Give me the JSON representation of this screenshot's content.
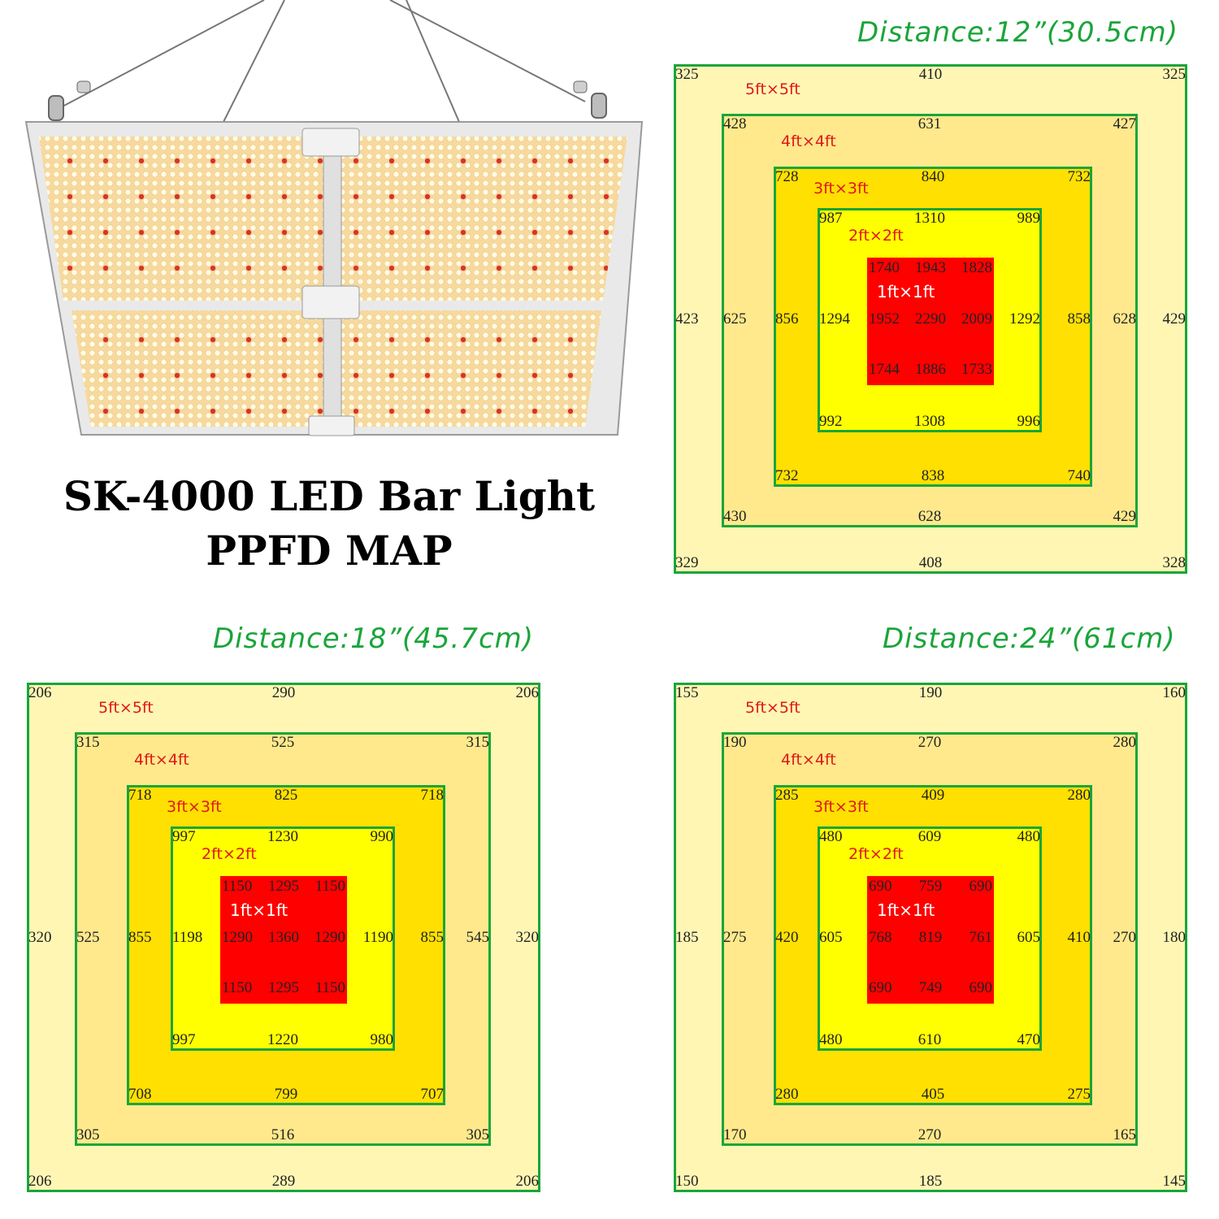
{
  "title": {
    "line1": "SK-4000 LED Bar Light",
    "line2": "PPFD MAP"
  },
  "colors": {
    "zone_5ft": "#fff6b4",
    "zone_4ft": "#ffe98c",
    "zone_3ft": "#ffe000",
    "zone_2ft": "#ffff00",
    "zone_1ft": "#ff0000",
    "border": "#1aa53a",
    "distance_text": "#1aa53a",
    "zone_label": "#e01818"
  },
  "zone_labels": {
    "z5": "5ft×5ft",
    "z4": "4ft×4ft",
    "z3": "3ft×3ft",
    "z2": "2ft×2ft",
    "z1": "1ft×1ft"
  },
  "maps": [
    {
      "distance": "Distance:12”(30.5cm)",
      "z5": {
        "tl": "325",
        "tc": "410",
        "tr": "325",
        "ml": "423",
        "mr": "429",
        "bl": "329",
        "bc": "408",
        "br": "328"
      },
      "z4": {
        "tl": "428",
        "tc": "631",
        "tr": "427",
        "ml": "625",
        "mr": "628",
        "bl": "430",
        "bc": "628",
        "br": "429"
      },
      "z3": {
        "tl": "728",
        "tc": "840",
        "tr": "732",
        "ml": "856",
        "mr": "858",
        "bl": "732",
        "bc": "838",
        "br": "740"
      },
      "z2": {
        "tl": "987",
        "tc": "1310",
        "tr": "989",
        "ml": "1294",
        "mr": "1292",
        "bl": "992",
        "bc": "1308",
        "br": "996"
      },
      "z1": {
        "tl": "1740",
        "tc": "1943",
        "tr": "1828",
        "ml": "1952",
        "c": "2290",
        "mr": "2009",
        "bl": "1744",
        "bc": "1886",
        "br": "1733"
      }
    },
    {
      "distance": "Distance:18”(45.7cm)",
      "z5": {
        "tl": "206",
        "tc": "290",
        "tr": "206",
        "ml": "320",
        "mr": "320",
        "bl": "206",
        "bc": "289",
        "br": "206"
      },
      "z4": {
        "tl": "315",
        "tc": "525",
        "tr": "315",
        "ml": "525",
        "mr": "545",
        "bl": "305",
        "bc": "516",
        "br": "305"
      },
      "z3": {
        "tl": "718",
        "tc": "825",
        "tr": "718",
        "ml": "855",
        "mr": "855",
        "bl": "708",
        "bc": "799",
        "br": "707"
      },
      "z2": {
        "tl": "997",
        "tc": "1230",
        "tr": "990",
        "ml": "1198",
        "mr": "1190",
        "bl": "997",
        "bc": "1220",
        "br": "980"
      },
      "z1": {
        "tl": "1150",
        "tc": "1295",
        "tr": "1150",
        "ml": "1290",
        "c": "1360",
        "mr": "1290",
        "bl": "1150",
        "bc": "1295",
        "br": "1150"
      }
    },
    {
      "distance": "Distance:24”(61cm)",
      "z5": {
        "tl": "155",
        "tc": "190",
        "tr": "160",
        "ml": "185",
        "mr": "180",
        "bl": "150",
        "bc": "185",
        "br": "145"
      },
      "z4": {
        "tl": "190",
        "tc": "270",
        "tr": "280",
        "ml": "275",
        "mr": "270",
        "bl": "170",
        "bc": "270",
        "br": "165"
      },
      "z3": {
        "tl": "285",
        "tc": "409",
        "tr": "280",
        "ml": "420",
        "mr": "410",
        "bl": "280",
        "bc": "405",
        "br": "275"
      },
      "z2": {
        "tl": "480",
        "tc": "609",
        "tr": "480",
        "ml": "605",
        "mr": "605",
        "bl": "480",
        "bc": "610",
        "br": "470"
      },
      "z1": {
        "tl": "690",
        "tc": "759",
        "tr": "690",
        "ml": "768",
        "c": "819",
        "mr": "761",
        "bl": "690",
        "bc": "749",
        "br": "690"
      }
    }
  ]
}
